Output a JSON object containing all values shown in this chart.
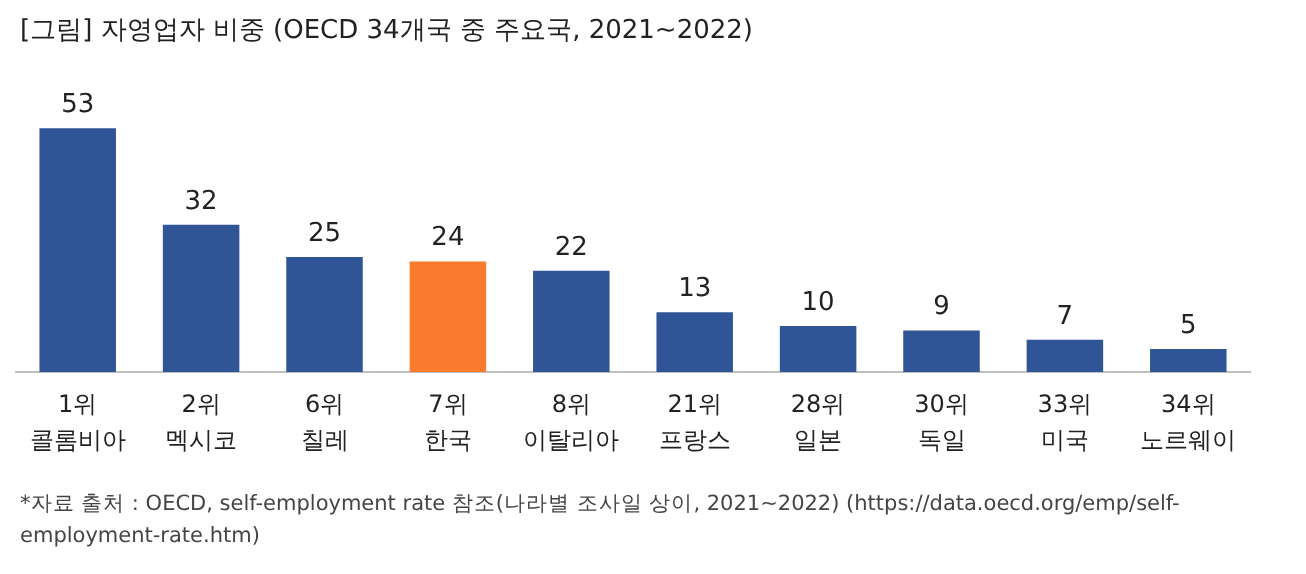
{
  "chart_data": {
    "type": "bar",
    "title": "[그림] 자영업자 비중 (OECD 34개국 중 주요국, 2021~2022)",
    "categories": [
      "1위\n콜롬비아",
      "2위\n멕시코",
      "6위\n칠레",
      "7위\n한국",
      "8위\n이탈리아",
      "21위\n프랑스",
      "28위\n일본",
      "30위\n독일",
      "33위\n미국",
      "34위\n노르웨이"
    ],
    "values": [
      53,
      32,
      25,
      24,
      22,
      13,
      10,
      9,
      7,
      5
    ],
    "colors": [
      "#2f5597",
      "#2f5597",
      "#2f5597",
      "#fb7b2e",
      "#2f5597",
      "#2f5597",
      "#2f5597",
      "#2f5597",
      "#2f5597",
      "#2f5597"
    ],
    "data_labels": true,
    "tick_labels": "x",
    "grid": false,
    "legend": false,
    "annotations": [
      "*자료 출처 : OECD, self-employment rate 참조(나라별 조사일 상이, 2021~2022) (https://data.oecd.org/emp/self-employment-rate.htm)"
    ]
  }
}
